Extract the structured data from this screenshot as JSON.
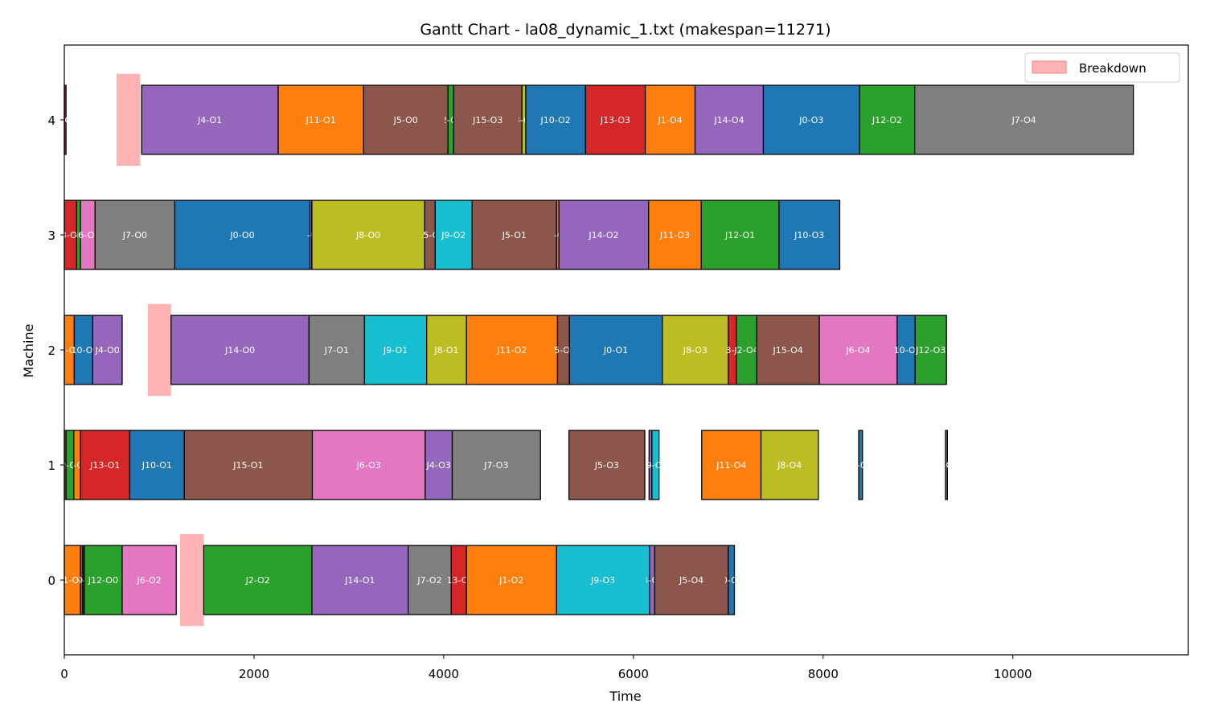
{
  "chart_data": {
    "type": "gantt",
    "title": "Gantt Chart - la08_dynamic_1.txt (makespan=11271)",
    "xlabel": "Time",
    "ylabel": "Machine",
    "xlim": [
      0,
      11850
    ],
    "ylim": [
      -0.65,
      4.65
    ],
    "x_ticks": [
      0,
      2000,
      4000,
      6000,
      8000,
      10000
    ],
    "x_tick_labels": [
      "0",
      "2000",
      "4000",
      "6000",
      "8000",
      "10000"
    ],
    "y_ticks": [
      0,
      1,
      2,
      3,
      4
    ],
    "y_tick_labels": [
      "0",
      "1",
      "2",
      "3",
      "4"
    ],
    "legend": {
      "position": "top-right",
      "entries": [
        {
          "label": "Breakdown",
          "color": "#ffb3b3"
        }
      ]
    },
    "job_colors": {
      "J0": "#1f77b4",
      "J1": "#ff7f0e",
      "J2": "#2ca02c",
      "J3": "#d62728",
      "J4": "#9467bd",
      "J5": "#8c564b",
      "J6": "#e377c2",
      "J7": "#7f7f7f",
      "J8": "#bcbd22",
      "J9": "#17becf",
      "J10": "#1f77b4",
      "J11": "#ff7f0e",
      "J12": "#2ca02c",
      "J13": "#d62728",
      "J14": "#9467bd",
      "J15": "#8c564b"
    },
    "breakdowns": [
      {
        "machine": 4,
        "start": 550,
        "end": 800
      },
      {
        "machine": 2,
        "start": 880,
        "end": 1125
      },
      {
        "machine": 0,
        "start": 1220,
        "end": 1470
      }
    ],
    "operations": [
      {
        "machine": 4,
        "job": "J3",
        "label": "J3-O0",
        "start": 0,
        "end": 18
      },
      {
        "machine": 4,
        "job": "J4",
        "label": "J4-O1",
        "start": 815,
        "end": 2255
      },
      {
        "machine": 4,
        "job": "J11",
        "label": "J11-O1",
        "start": 2255,
        "end": 3155
      },
      {
        "machine": 4,
        "job": "J5",
        "label": "J5-O0",
        "start": 3155,
        "end": 4045
      },
      {
        "machine": 4,
        "job": "J2",
        "label": "J2-O3",
        "start": 4045,
        "end": 4105
      },
      {
        "machine": 4,
        "job": "J15",
        "label": "J15-O3",
        "start": 4105,
        "end": 4825
      },
      {
        "machine": 4,
        "job": "J8",
        "label": "J8-O2",
        "start": 4825,
        "end": 4865
      },
      {
        "machine": 4,
        "job": "J10",
        "label": "J10-O2",
        "start": 4865,
        "end": 5495
      },
      {
        "machine": 4,
        "job": "J13",
        "label": "J13-O3",
        "start": 5495,
        "end": 6125
      },
      {
        "machine": 4,
        "job": "J1",
        "label": "J1-O4",
        "start": 6125,
        "end": 6650
      },
      {
        "machine": 4,
        "job": "J14",
        "label": "J14-O4",
        "start": 6650,
        "end": 7370
      },
      {
        "machine": 4,
        "job": "J0",
        "label": "J0-O3",
        "start": 7370,
        "end": 8385
      },
      {
        "machine": 4,
        "job": "J12",
        "label": "J12-O2",
        "start": 8385,
        "end": 8965
      },
      {
        "machine": 4,
        "job": "J7",
        "label": "J7-O4",
        "start": 8965,
        "end": 11271
      },
      {
        "machine": 3,
        "job": "J3",
        "label": "J3-O1",
        "start": 0,
        "end": 130
      },
      {
        "machine": 3,
        "job": "J2",
        "label": "J2-O0",
        "start": 130,
        "end": 170
      },
      {
        "machine": 3,
        "job": "J6",
        "label": "J6-O1",
        "start": 170,
        "end": 325
      },
      {
        "machine": 3,
        "job": "J7",
        "label": "J7-O0",
        "start": 325,
        "end": 1165
      },
      {
        "machine": 3,
        "job": "J0",
        "label": "J0-O0",
        "start": 1165,
        "end": 2590
      },
      {
        "machine": 3,
        "job": "J4",
        "label": "J4-O2",
        "start": 2590,
        "end": 2610
      },
      {
        "machine": 3,
        "job": "J8",
        "label": "J8-O0",
        "start": 2610,
        "end": 3800
      },
      {
        "machine": 3,
        "job": "J15",
        "label": "J15-O2",
        "start": 3800,
        "end": 3910
      },
      {
        "machine": 3,
        "job": "J9",
        "label": "J9-O2",
        "start": 3910,
        "end": 4300
      },
      {
        "machine": 3,
        "job": "J5",
        "label": "J5-O1",
        "start": 4300,
        "end": 5190
      },
      {
        "machine": 3,
        "job": "J1",
        "label": "J1-O3",
        "start": 5190,
        "end": 5215
      },
      {
        "machine": 3,
        "job": "J14",
        "label": "J14-O2",
        "start": 5215,
        "end": 6160
      },
      {
        "machine": 3,
        "job": "J11",
        "label": "J11-O3",
        "start": 6160,
        "end": 6715
      },
      {
        "machine": 3,
        "job": "J12",
        "label": "J12-O1",
        "start": 6715,
        "end": 7535
      },
      {
        "machine": 3,
        "job": "J10",
        "label": "J10-O3",
        "start": 7535,
        "end": 8175
      },
      {
        "machine": 2,
        "job": "J1",
        "label": "J1-O0",
        "start": 0,
        "end": 105
      },
      {
        "machine": 2,
        "job": "J10",
        "label": "J10-O0",
        "start": 105,
        "end": 300
      },
      {
        "machine": 2,
        "job": "J4",
        "label": "J4-O0",
        "start": 300,
        "end": 610
      },
      {
        "machine": 2,
        "job": "J14",
        "label": "J14-O0",
        "start": 1125,
        "end": 2580
      },
      {
        "machine": 2,
        "job": "J7",
        "label": "J7-O1",
        "start": 2580,
        "end": 3165
      },
      {
        "machine": 2,
        "job": "J9",
        "label": "J9-O1",
        "start": 3165,
        "end": 3820
      },
      {
        "machine": 2,
        "job": "J8",
        "label": "J8-O1",
        "start": 3820,
        "end": 4240
      },
      {
        "machine": 2,
        "job": "J11",
        "label": "J11-O2",
        "start": 4240,
        "end": 5200
      },
      {
        "machine": 2,
        "job": "J5",
        "label": "J5-O2",
        "start": 5200,
        "end": 5325
      },
      {
        "machine": 2,
        "job": "J0",
        "label": "J0-O1",
        "start": 5325,
        "end": 6305
      },
      {
        "machine": 2,
        "job": "J8",
        "label": "J8-O3",
        "start": 6305,
        "end": 7000
      },
      {
        "machine": 2,
        "job": "J13",
        "label": "J13-O4",
        "start": 7000,
        "end": 7085
      },
      {
        "machine": 2,
        "job": "J2",
        "label": "J2-O4",
        "start": 7085,
        "end": 7300
      },
      {
        "machine": 2,
        "job": "J15",
        "label": "J15-O4",
        "start": 7300,
        "end": 7960
      },
      {
        "machine": 2,
        "job": "J6",
        "label": "J6-O4",
        "start": 7960,
        "end": 8780
      },
      {
        "machine": 2,
        "job": "J10",
        "label": "J10-O4",
        "start": 8780,
        "end": 8970
      },
      {
        "machine": 2,
        "job": "J12",
        "label": "J12-O3",
        "start": 8970,
        "end": 9300
      },
      {
        "machine": 1,
        "job": "J5",
        "label": "J5-O1",
        "start": 0,
        "end": 18
      },
      {
        "machine": 1,
        "job": "J2",
        "label": "J2-O1",
        "start": 18,
        "end": 100
      },
      {
        "machine": 1,
        "job": "J1",
        "label": "J1-O1",
        "start": 100,
        "end": 170
      },
      {
        "machine": 1,
        "job": "J13",
        "label": "J13-O1",
        "start": 170,
        "end": 690
      },
      {
        "machine": 1,
        "job": "J10",
        "label": "J10-O1",
        "start": 690,
        "end": 1265
      },
      {
        "machine": 1,
        "job": "J15",
        "label": "J15-O1",
        "start": 1265,
        "end": 2615
      },
      {
        "machine": 1,
        "job": "J6",
        "label": "J6-O3",
        "start": 2615,
        "end": 3805
      },
      {
        "machine": 1,
        "job": "J4",
        "label": "J4-O3",
        "start": 3805,
        "end": 4090
      },
      {
        "machine": 1,
        "job": "J7",
        "label": "J7-O3",
        "start": 4090,
        "end": 5020
      },
      {
        "machine": 1,
        "job": "J5",
        "label": "J5-O3",
        "start": 5320,
        "end": 6120
      },
      {
        "machine": 1,
        "job": "J14",
        "label": "J14-O3",
        "start": 6165,
        "end": 6195
      },
      {
        "machine": 1,
        "job": "J9",
        "label": "J9-O4",
        "start": 6195,
        "end": 6270
      },
      {
        "machine": 1,
        "job": "J11",
        "label": "J11-O4",
        "start": 6720,
        "end": 7345
      },
      {
        "machine": 1,
        "job": "J8",
        "label": "J8-O4",
        "start": 7345,
        "end": 7950
      },
      {
        "machine": 1,
        "job": "J0",
        "label": "J0-O4",
        "start": 8375,
        "end": 8415
      },
      {
        "machine": 1,
        "job": "J7",
        "label": "J7-O2",
        "start": 9290,
        "end": 9310
      },
      {
        "machine": 0,
        "job": "J1",
        "label": "J1-O1",
        "start": 0,
        "end": 170
      },
      {
        "machine": 0,
        "job": "J5",
        "label": "J5-O0",
        "start": 170,
        "end": 195
      },
      {
        "machine": 0,
        "job": "J10",
        "label": "J10-O1",
        "start": 195,
        "end": 210
      },
      {
        "machine": 0,
        "job": "J12",
        "label": "J12-O0",
        "start": 210,
        "end": 610
      },
      {
        "machine": 0,
        "job": "J6",
        "label": "J6-O2",
        "start": 610,
        "end": 1180
      },
      {
        "machine": 0,
        "job": "J2",
        "label": "J2-O2",
        "start": 1470,
        "end": 2610
      },
      {
        "machine": 0,
        "job": "J14",
        "label": "J14-O1",
        "start": 2610,
        "end": 3625
      },
      {
        "machine": 0,
        "job": "J7",
        "label": "J7-O2",
        "start": 3625,
        "end": 4080
      },
      {
        "machine": 0,
        "job": "J13",
        "label": "J13-O2",
        "start": 4080,
        "end": 4240
      },
      {
        "machine": 0,
        "job": "J1",
        "label": "J1-O2",
        "start": 4240,
        "end": 5190
      },
      {
        "machine": 0,
        "job": "J9",
        "label": "J9-O3",
        "start": 5190,
        "end": 6170
      },
      {
        "machine": 0,
        "job": "J4",
        "label": "J4-O4",
        "start": 6170,
        "end": 6225
      },
      {
        "machine": 0,
        "job": "J5",
        "label": "J5-O4",
        "start": 6225,
        "end": 7000
      },
      {
        "machine": 0,
        "job": "J0",
        "label": "J0-O2",
        "start": 7000,
        "end": 7065
      }
    ]
  }
}
